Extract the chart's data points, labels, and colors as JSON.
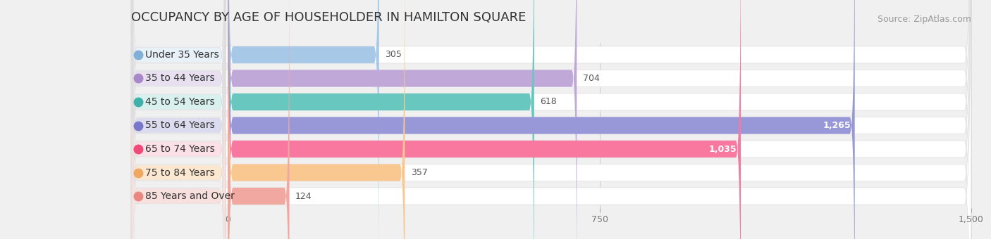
{
  "title": "OCCUPANCY BY AGE OF HOUSEHOLDER IN HAMILTON SQUARE",
  "source": "Source: ZipAtlas.com",
  "categories": [
    "Under 35 Years",
    "35 to 44 Years",
    "45 to 54 Years",
    "55 to 64 Years",
    "65 to 74 Years",
    "75 to 84 Years",
    "85 Years and Over"
  ],
  "values": [
    305,
    704,
    618,
    1265,
    1035,
    357,
    124
  ],
  "bar_colors": [
    "#a8c8e8",
    "#c0a8d8",
    "#68c8c0",
    "#9898d8",
    "#f878a0",
    "#f8c890",
    "#f0a8a0"
  ],
  "label_bg_colors": [
    "#e8f0f8",
    "#e8e0f0",
    "#d8f0ee",
    "#dcdcf0",
    "#fce0e8",
    "#fce8d0",
    "#f8e0de"
  ],
  "dot_colors": [
    "#80b0d8",
    "#a888c8",
    "#40b0a8",
    "#7878c8",
    "#f04878",
    "#f0a860",
    "#e88880"
  ],
  "xlim": [
    -200,
    1500
  ],
  "data_xlim": [
    0,
    1500
  ],
  "xticks": [
    0,
    750,
    1500
  ],
  "background_color": "#f0f0f0",
  "bar_background_color": "#ffffff",
  "title_fontsize": 13,
  "source_fontsize": 9,
  "label_fontsize": 10,
  "value_fontsize": 9
}
